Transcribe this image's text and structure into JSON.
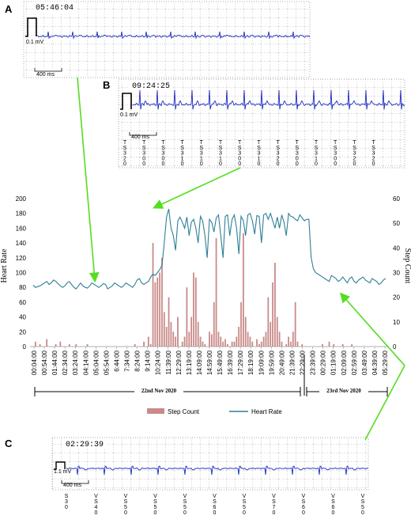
{
  "panels": {
    "A": {
      "letter": "A",
      "time": "05:46:04",
      "scale": "0.1 mV",
      "ms": "400 ms"
    },
    "B": {
      "letter": "B",
      "time": "09:24:25",
      "scale": "0.1 mV",
      "ms": "400 ms",
      "beats": [
        [
          "T",
          "S",
          "3",
          "2",
          "0"
        ],
        [
          "T",
          "S",
          "3",
          "0",
          "0"
        ],
        [
          "T",
          "S",
          "3",
          "0",
          "0"
        ],
        [
          "T",
          "S",
          "3",
          "1",
          "0"
        ],
        [
          "T",
          "S",
          "3",
          "1",
          "0"
        ],
        [
          "T",
          "S",
          "3",
          "1",
          "0"
        ],
        [
          "T",
          "S",
          "3",
          "0",
          "0"
        ],
        [
          "T",
          "S",
          "3",
          "1",
          "0"
        ],
        [
          "T",
          "S",
          "3",
          "2",
          "0"
        ],
        [
          "T",
          "S",
          "3",
          "0",
          "0"
        ],
        [
          "T",
          "S",
          "3",
          "1",
          "0"
        ],
        [
          "T",
          "S",
          "3",
          "0",
          "0"
        ],
        [
          "T",
          "S",
          "3",
          "2",
          "0"
        ],
        [
          "T",
          "S",
          "3",
          "2",
          "0"
        ]
      ]
    },
    "C": {
      "letter": "C",
      "time": "02:29:39",
      "scale": "1.1 mV",
      "ms": "400 ms",
      "beats": [
        [
          "S",
          "3",
          "0"
        ],
        [
          "V",
          "S",
          "4",
          "0"
        ],
        [
          "V",
          "S",
          "5",
          "0"
        ],
        [
          "V",
          "S",
          "5",
          "0"
        ],
        [
          "V",
          "S",
          "5",
          "0"
        ],
        [
          "V",
          "S",
          "6",
          "0"
        ],
        [
          "V",
          "S",
          "5",
          "0"
        ],
        [
          "V",
          "S",
          "7",
          "0"
        ],
        [
          "V",
          "S",
          "6",
          "0"
        ],
        [
          "V",
          "S",
          "6",
          "0"
        ],
        [
          "V",
          "S",
          "5",
          "0"
        ]
      ]
    }
  },
  "colors": {
    "heart_rate": "#2e7f96",
    "step_count": "#c98a88",
    "ecg": "#1d2dbf",
    "arrow": "#55dd22"
  },
  "chart_data": {
    "type": "bar+line",
    "title": "",
    "ylabel_left": "Heart Rate",
    "ylabel_right": "Step Count",
    "ylim_left": [
      0,
      200
    ],
    "ylim_right": [
      0,
      60
    ],
    "yticks_left": [
      "0",
      "20",
      "40",
      "60",
      "80",
      "100",
      "120",
      "140",
      "160",
      "180",
      "200"
    ],
    "yticks_right": [
      "0",
      "10",
      "20",
      "30",
      "40",
      "50",
      "60"
    ],
    "xticks": [
      "00:04:00",
      "00:54:00",
      "01:44:00",
      "02:34:00",
      "03:24:00",
      "04:14:00",
      "05:04:00",
      "05:54:00",
      "6:44:00",
      "7:34:00",
      "8:24:00",
      "9:14:00",
      "10:24:00",
      "11:39:00",
      "12:29:00",
      "13:19:00",
      "14:09:00",
      "14:59:00",
      "15:49:00",
      "16:39:00",
      "17:29:00",
      "18:19:00",
      "19:09:00",
      "19:59:00",
      "20:49:00",
      "21:39:00",
      "22:29:00",
      "23:39:00",
      "00:29:00",
      "01:19:00",
      "02:09:00",
      "02:59:00",
      "03:49:00",
      "04:39:00",
      "05:29:00"
    ],
    "date_labels": [
      "22nd Nov 2020",
      "23rd Nov 2020"
    ],
    "legend": [
      "Step Count",
      "Heart Rate"
    ],
    "legend_position": "bottom",
    "grid": false,
    "heart_rate": [
      83,
      80,
      81,
      82,
      84,
      86,
      88,
      84,
      86,
      90,
      88,
      85,
      82,
      80,
      82,
      86,
      88,
      84,
      80,
      78,
      82,
      86,
      82,
      80,
      79,
      82,
      86,
      84,
      82,
      80,
      82,
      85,
      84,
      78,
      80,
      82,
      86,
      84,
      82,
      80,
      82,
      86,
      84,
      82,
      80,
      84,
      90,
      92,
      86,
      84,
      86,
      88,
      94,
      98,
      96,
      100,
      104,
      110,
      140,
      175,
      186,
      160,
      150,
      130,
      170,
      175,
      168,
      160,
      175,
      150,
      168,
      172,
      160,
      140,
      176,
      170,
      150,
      120,
      172,
      168,
      155,
      174,
      178,
      150,
      120,
      176,
      178,
      150,
      172,
      178,
      160,
      125,
      176,
      170,
      150,
      178,
      180,
      170,
      152,
      177,
      176,
      140,
      178,
      180,
      172,
      180,
      170,
      160,
      175,
      160,
      178,
      168,
      150,
      180,
      176,
      175,
      172,
      170,
      178,
      174,
      170,
      172,
      172,
      120,
      105,
      100,
      98,
      96,
      94,
      92,
      90,
      88,
      96,
      94,
      92,
      88,
      90,
      94,
      90,
      86,
      92,
      94,
      88,
      86,
      90,
      92,
      94,
      90,
      88,
      86,
      92,
      90,
      88,
      84,
      86,
      90,
      92
    ],
    "step_count": [
      0,
      2,
      0,
      1,
      0,
      0,
      3,
      0,
      0,
      0,
      1,
      0,
      2,
      0,
      0,
      0,
      1,
      0,
      0,
      1,
      0,
      0,
      0,
      0,
      1,
      0,
      0,
      0,
      0,
      0,
      0,
      0,
      0,
      0,
      0,
      0,
      0,
      0,
      0,
      0,
      0,
      0,
      0,
      0,
      0,
      1,
      0,
      0,
      0,
      2,
      0,
      4,
      1,
      42,
      26,
      28,
      30,
      36,
      14,
      8,
      20,
      10,
      6,
      4,
      12,
      0,
      2,
      4,
      24,
      6,
      12,
      30,
      28,
      10,
      4,
      2,
      1,
      0,
      6,
      5,
      18,
      44,
      6,
      4,
      2,
      3,
      1,
      0,
      2,
      2,
      4,
      8,
      18,
      46,
      12,
      6,
      4,
      2,
      0,
      3,
      1,
      2,
      4,
      6,
      20,
      10,
      26,
      34,
      12,
      6,
      2,
      0,
      1,
      4,
      2,
      6,
      18,
      2,
      0,
      1,
      0,
      0,
      0,
      0,
      0,
      0,
      0,
      0,
      1,
      0,
      0,
      2,
      0,
      1,
      0,
      0,
      0,
      1,
      0,
      0,
      0,
      1,
      0,
      0,
      0,
      0,
      0,
      0,
      0,
      0,
      0,
      0,
      0,
      0,
      0,
      0,
      0
    ]
  }
}
